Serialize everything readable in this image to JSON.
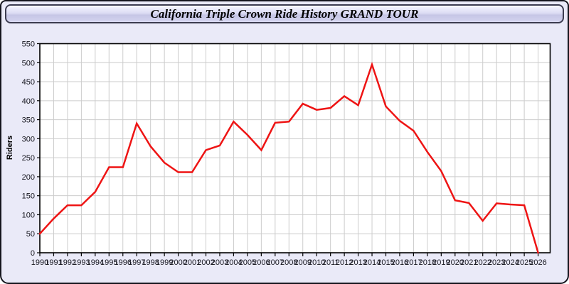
{
  "window": {
    "title": "California Triple Crown Ride History GRAND TOUR"
  },
  "colors": {
    "background": "#EAEAF8",
    "titlebar_top": "#FFFFFF",
    "titlebar_bottom": "#C6C6E6",
    "plot_background": "#FFFFFF",
    "grid": "#CCCCCC",
    "axis_border": "#000000",
    "line": "#EE1414",
    "tick_label": "#15151E"
  },
  "chart_data": {
    "type": "line",
    "title": "California Triple Crown Ride History GRAND TOUR",
    "xlabel": "",
    "ylabel": "Riders",
    "ylim": [
      0,
      550
    ],
    "ytick_step": 50,
    "grid": true,
    "legend": false,
    "x": [
      1990,
      1991,
      1992,
      1993,
      1994,
      1995,
      1996,
      1997,
      1998,
      1999,
      2000,
      2001,
      2002,
      2003,
      2004,
      2005,
      2006,
      2007,
      2008,
      2009,
      2010,
      2011,
      2012,
      2013,
      2014,
      2015,
      2016,
      2017,
      2018,
      2019,
      2020,
      2021,
      2022,
      2023,
      2024,
      2025,
      2026
    ],
    "series": [
      {
        "name": "Riders",
        "color": "#EE1414",
        "values": [
          50,
          90,
          125,
          125,
          160,
          225,
          225,
          340,
          280,
          237,
          212,
          212,
          270,
          282,
          345,
          310,
          270,
          342,
          345,
          392,
          376,
          381,
          412,
          388,
          495,
          385,
          347,
          321,
          265,
          215,
          138,
          131,
          84,
          130,
          127,
          125,
          0
        ]
      }
    ]
  }
}
